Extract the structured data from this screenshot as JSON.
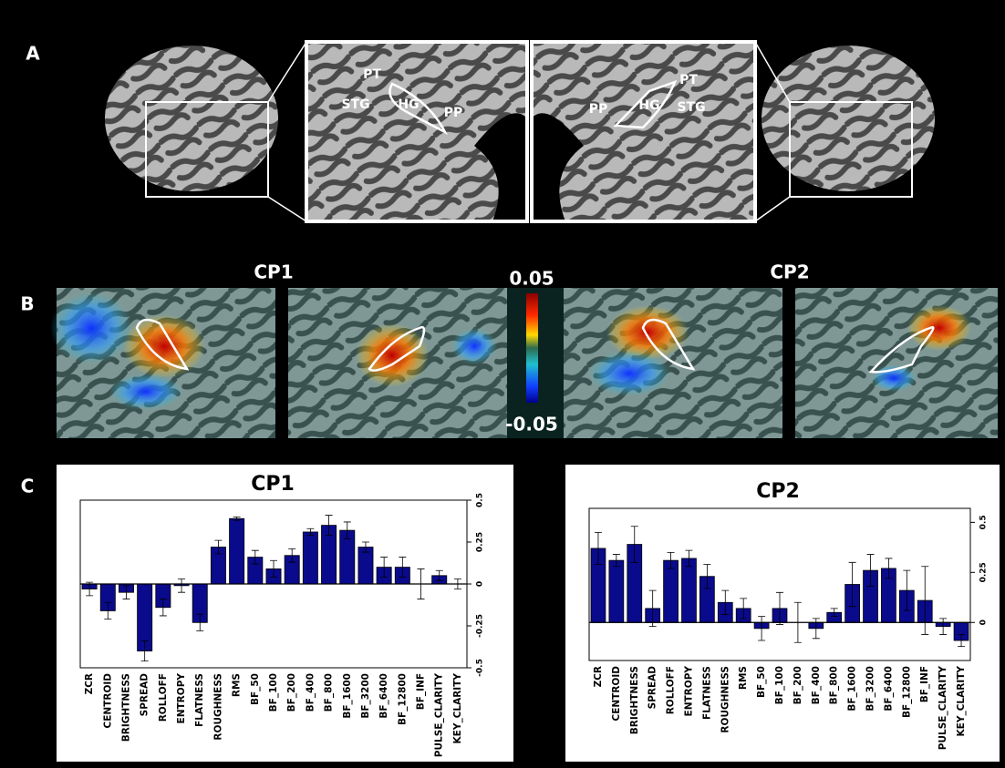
{
  "panel_labels": [
    "A",
    "B",
    "C"
  ],
  "region_labels_left": [
    "PT",
    "STG",
    "HG",
    "PP"
  ],
  "region_labels_right": [
    "PP",
    "HG",
    "STG",
    "PT"
  ],
  "map_titles": [
    "CP1",
    "CP2"
  ],
  "colorbar": {
    "max": 0.05,
    "min": -0.05
  },
  "chart_data": [
    {
      "type": "bar",
      "title": "CP1",
      "color": "#0a0a8c",
      "categories": [
        "ZCR",
        "CENTROID",
        "BRIGHTNESS",
        "SPREAD",
        "ROLLOFF",
        "ENTROPY",
        "FLATNESS",
        "ROUGHNESS",
        "RMS",
        "BF_50",
        "BF_100",
        "BF_200",
        "BF_400",
        "BF_800",
        "BF_1600",
        "BF_3200",
        "BF_6400",
        "BF_12800",
        "BF_INF",
        "PULSE_CLARITY",
        "KEY_CLARITY"
      ],
      "values": [
        -0.03,
        -0.16,
        -0.05,
        -0.4,
        -0.14,
        -0.01,
        -0.23,
        0.22,
        0.39,
        0.16,
        0.09,
        0.17,
        0.31,
        0.35,
        0.32,
        0.22,
        0.1,
        0.1,
        0.0,
        0.05,
        0.0
      ],
      "errors": [
        0.04,
        0.05,
        0.04,
        0.06,
        0.05,
        0.04,
        0.05,
        0.04,
        0.01,
        0.04,
        0.05,
        0.04,
        0.02,
        0.06,
        0.05,
        0.03,
        0.06,
        0.06,
        0.09,
        0.03,
        0.03
      ],
      "ylim": [
        -0.5,
        0.5
      ],
      "yticks": [
        -0.5,
        -0.25,
        0,
        0.25,
        0.5
      ]
    },
    {
      "type": "bar",
      "title": "CP2",
      "color": "#0a0a8c",
      "categories": [
        "ZCR",
        "CENTROID",
        "BRIGHTNESS",
        "SPREAD",
        "ROLLOFF",
        "ENTROPY",
        "FLATNESS",
        "ROUGHNESS",
        "RMS",
        "BF_50",
        "BF_100",
        "BF_200",
        "BF_400",
        "BF_800",
        "BF_1600",
        "BF_3200",
        "BF_6400",
        "BF_12800",
        "BF_INF",
        "PULSE_CLARITY",
        "KEY_CLARITY"
      ],
      "values": [
        0.37,
        0.31,
        0.39,
        0.07,
        0.31,
        0.32,
        0.23,
        0.1,
        0.07,
        -0.03,
        0.07,
        0.0,
        -0.03,
        0.05,
        0.19,
        0.26,
        0.27,
        0.16,
        0.11,
        -0.02,
        -0.09
      ],
      "errors": [
        0.08,
        0.03,
        0.09,
        0.09,
        0.04,
        0.04,
        0.06,
        0.06,
        0.05,
        0.06,
        0.08,
        0.1,
        0.05,
        0.02,
        0.11,
        0.08,
        0.05,
        0.1,
        0.17,
        0.04,
        0.03
      ],
      "ylim": [
        -0.19,
        0.57
      ],
      "yticks": [
        0,
        0.25,
        0.5
      ]
    }
  ]
}
